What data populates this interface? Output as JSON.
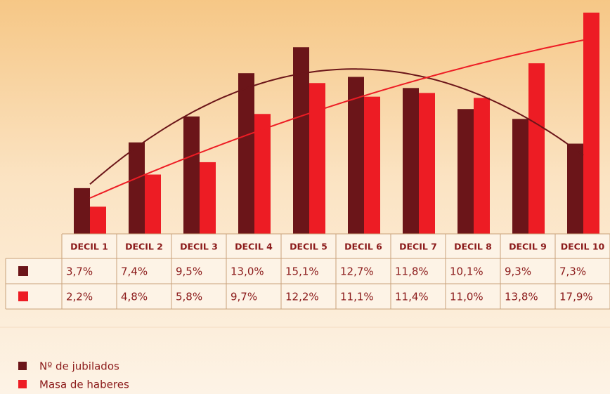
{
  "chart_data": {
    "type": "bar",
    "categories": [
      "DECIL 1",
      "DECIL 2",
      "DECIL 3",
      "DECIL 4",
      "DECIL 5",
      "DECIL 6",
      "DECIL 7",
      "DECIL 8",
      "DECIL 9",
      "DECIL 10"
    ],
    "series": [
      {
        "name": "Nº de jubilados",
        "color": "#6b1519",
        "values": [
          3.7,
          7.4,
          9.5,
          13.0,
          15.1,
          12.7,
          11.8,
          10.1,
          9.3,
          7.3
        ],
        "value_labels": [
          "3,7%",
          "7,4%",
          "9,5%",
          "13,0%",
          "15,1%",
          "12,7%",
          "11,8%",
          "10,1%",
          "9,3%",
          "7,3%"
        ]
      },
      {
        "name": "Masa de haberes",
        "color": "#ed1c24",
        "values": [
          2.2,
          4.8,
          5.8,
          9.7,
          12.2,
          11.1,
          11.4,
          11.0,
          13.8,
          17.9
        ],
        "value_labels": [
          "2,2%",
          "4,8%",
          "5,8%",
          "9,7%",
          "12,2%",
          "11,1%",
          "11,4%",
          "11,0%",
          "13,8%",
          "17,9%"
        ]
      }
    ],
    "legend": "bottom-left",
    "trendline": true
  }
}
